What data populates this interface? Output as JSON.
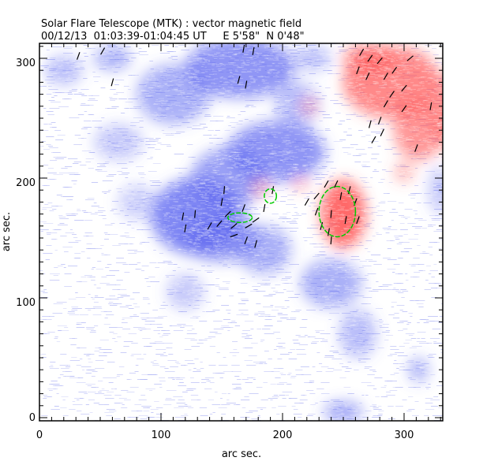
{
  "chart_data": {
    "type": "heatmap",
    "title": "Solar Flare Telescope (MTK) : vector magnetic field",
    "subtitle": "00/12/13  01:03:39-01:04:45 UT     E 5'58\"  N 0'48\"",
    "xlabel": "arc sec.",
    "ylabel": "arc sec.",
    "xlim": [
      0,
      332
    ],
    "ylim": [
      0,
      312
    ],
    "xticks": [
      "0",
      "100",
      "200",
      "300"
    ],
    "yticks": [
      "0",
      "100",
      "200",
      "300"
    ],
    "colors": {
      "negative": "#5a64f0",
      "positive": "#ff5050",
      "vector": "#000000",
      "contour": "#00cc00",
      "noise": "#b4b9f5"
    },
    "negative_regions": [
      [
        130,
        168,
        38,
        32,
        0.9
      ],
      [
        155,
        200,
        30,
        25,
        0.7
      ],
      [
        195,
        222,
        40,
        25,
        0.8
      ],
      [
        165,
        292,
        45,
        25,
        0.8
      ],
      [
        110,
        270,
        30,
        25,
        0.6
      ],
      [
        60,
        300,
        15,
        10,
        0.6
      ],
      [
        20,
        290,
        15,
        12,
        0.5
      ],
      [
        212,
        262,
        18,
        18,
        0.5
      ],
      [
        240,
        112,
        25,
        20,
        0.6
      ],
      [
        262,
        70,
        15,
        20,
        0.5
      ],
      [
        250,
        5,
        16,
        8,
        0.7
      ],
      [
        312,
        40,
        8,
        10,
        0.6
      ],
      [
        150,
        150,
        30,
        20,
        0.7
      ],
      [
        185,
        140,
        22,
        20,
        0.6
      ],
      [
        65,
        230,
        20,
        15,
        0.4
      ],
      [
        120,
        105,
        15,
        15,
        0.4
      ],
      [
        80,
        180,
        15,
        15,
        0.35
      ],
      [
        330,
        190,
        10,
        20,
        0.4
      ],
      [
        225,
        300,
        15,
        10,
        0.5
      ]
    ],
    "positive_regions": [
      [
        250,
        170,
        18,
        28,
        1.0
      ],
      [
        290,
        280,
        40,
        30,
        0.8
      ],
      [
        312,
        240,
        20,
        25,
        0.7
      ],
      [
        215,
        195,
        6,
        5,
        0.6
      ],
      [
        222,
        260,
        6,
        6,
        0.6
      ],
      [
        335,
        255,
        12,
        30,
        0.7
      ],
      [
        182,
        192,
        7,
        7,
        0.5
      ],
      [
        270,
        300,
        20,
        12,
        0.7
      ],
      [
        300,
        205,
        8,
        8,
        0.5
      ]
    ],
    "vectors": [
      [
        32,
        302,
        70
      ],
      [
        52,
        306,
        60
      ],
      [
        60,
        280,
        75
      ],
      [
        168,
        308,
        80
      ],
      [
        176,
        306,
        80
      ],
      [
        164,
        282,
        75
      ],
      [
        170,
        278,
        80
      ],
      [
        265,
        305,
        60
      ],
      [
        272,
        300,
        55
      ],
      [
        280,
        298,
        50
      ],
      [
        262,
        290,
        70
      ],
      [
        270,
        285,
        65
      ],
      [
        285,
        285,
        60
      ],
      [
        292,
        290,
        55
      ],
      [
        305,
        300,
        40
      ],
      [
        300,
        275,
        50
      ],
      [
        290,
        270,
        55
      ],
      [
        285,
        262,
        60
      ],
      [
        280,
        248,
        70
      ],
      [
        272,
        245,
        75
      ],
      [
        282,
        238,
        65
      ],
      [
        275,
        232,
        60
      ],
      [
        310,
        225,
        70
      ],
      [
        322,
        260,
        80
      ],
      [
        300,
        258,
        55
      ],
      [
        118,
        168,
        80
      ],
      [
        120,
        158,
        80
      ],
      [
        128,
        170,
        85
      ],
      [
        140,
        160,
        60
      ],
      [
        148,
        162,
        50
      ],
      [
        155,
        170,
        45
      ],
      [
        160,
        160,
        40
      ],
      [
        150,
        180,
        80
      ],
      [
        152,
        190,
        85
      ],
      [
        168,
        175,
        70
      ],
      [
        172,
        160,
        30
      ],
      [
        178,
        165,
        35
      ],
      [
        160,
        152,
        20
      ],
      [
        170,
        148,
        70
      ],
      [
        178,
        145,
        75
      ],
      [
        185,
        175,
        80
      ],
      [
        192,
        190,
        80
      ],
      [
        220,
        180,
        60
      ],
      [
        228,
        172,
        70
      ],
      [
        232,
        160,
        75
      ],
      [
        238,
        155,
        80
      ],
      [
        240,
        170,
        85
      ],
      [
        248,
        185,
        80
      ],
      [
        255,
        190,
        75
      ],
      [
        260,
        180,
        70
      ],
      [
        236,
        195,
        60
      ],
      [
        244,
        195,
        65
      ],
      [
        252,
        165,
        80
      ],
      [
        262,
        165,
        70
      ],
      [
        228,
        185,
        50
      ],
      [
        240,
        148,
        85
      ]
    ],
    "contours": [
      [
        190,
        185,
        5,
        6
      ],
      [
        165,
        167,
        10,
        4
      ],
      [
        245,
        172,
        15,
        21
      ]
    ]
  }
}
